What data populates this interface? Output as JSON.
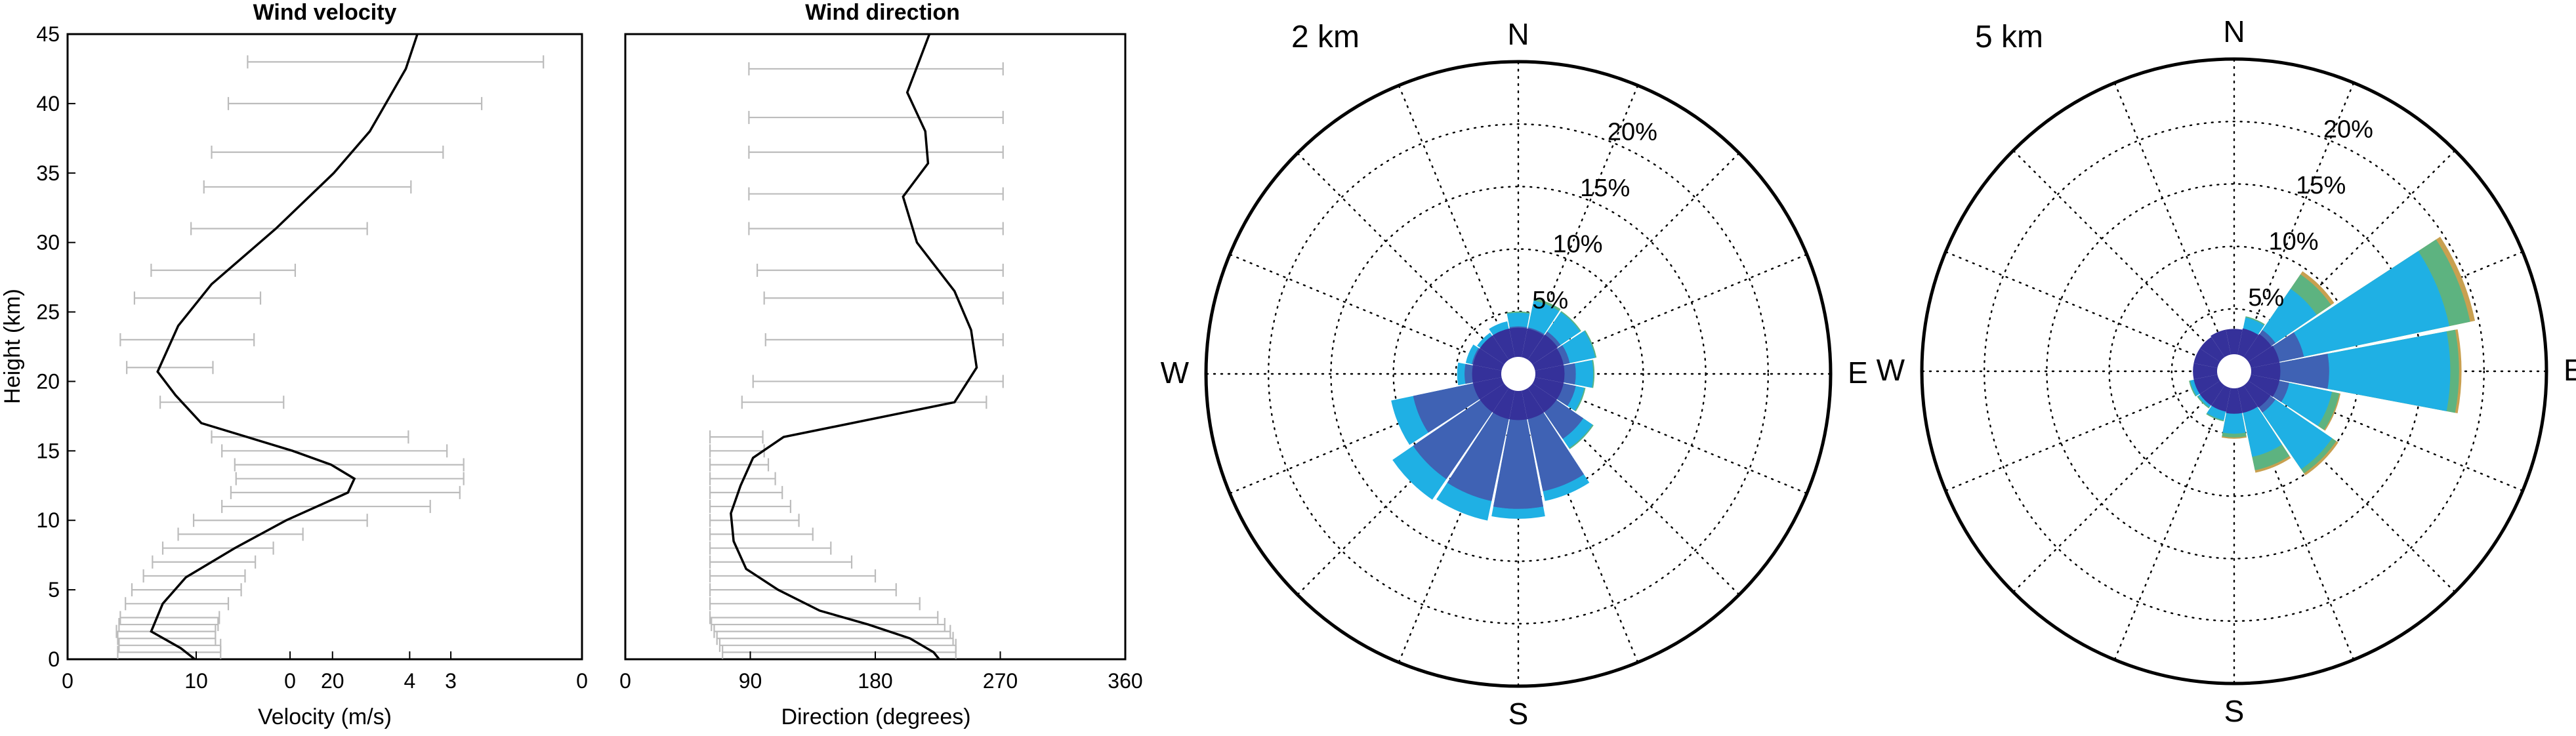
{
  "chart_data": [
    {
      "type": "line",
      "title": "Wind velocity",
      "xlabel": "Velocity (m/s)",
      "ylabel": "Height (km)",
      "xlim": [
        0,
        40
      ],
      "ylim": [
        0,
        45
      ],
      "x_tick_labels": [
        {
          "label": "0",
          "x": 0
        },
        {
          "label": "10",
          "x": 10
        },
        {
          "label": "0",
          "x": 17.3
        },
        {
          "label": "20",
          "x": 20.6
        },
        {
          "label": "4",
          "x": 26.6
        },
        {
          "label": "3",
          "x": 29.8
        },
        {
          "label": "0",
          "x": 40
        }
      ],
      "y_ticks": [
        0,
        5,
        10,
        15,
        20,
        25,
        30,
        35,
        40,
        45
      ],
      "grid": false,
      "series": [
        {
          "x": [
            9.9,
            8.8,
            6.5,
            7.4,
            9.2,
            13.0,
            17.0,
            21.8,
            22.3,
            20.5,
            17.5,
            10.4,
            8.4,
            7.0,
            8.6,
            11.2,
            16.2,
            20.7,
            23.5,
            26.3,
            27.2
          ],
          "y": [
            0,
            0.8,
            2.0,
            4.0,
            5.9,
            8.0,
            10.0,
            12.0,
            13.0,
            14.0,
            15.0,
            17.0,
            19.0,
            20.7,
            24.0,
            27.0,
            31.0,
            35.0,
            38.0,
            42.5,
            45.0
          ]
        }
      ],
      "error_bars": [
        {
          "y": 43,
          "lo": 14.0,
          "hi": 37.0
        },
        {
          "y": 40,
          "lo": 12.5,
          "hi": 32.2
        },
        {
          "y": 36.5,
          "lo": 11.2,
          "hi": 29.2
        },
        {
          "y": 34,
          "lo": 10.6,
          "hi": 26.7
        },
        {
          "y": 31,
          "lo": 9.6,
          "hi": 23.3
        },
        {
          "y": 28,
          "lo": 6.5,
          "hi": 17.7
        },
        {
          "y": 26,
          "lo": 5.2,
          "hi": 15.0
        },
        {
          "y": 23,
          "lo": 4.1,
          "hi": 14.5
        },
        {
          "y": 21,
          "lo": 4.6,
          "hi": 11.3
        },
        {
          "y": 18.5,
          "lo": 7.2,
          "hi": 16.8
        },
        {
          "y": 16,
          "lo": 11.2,
          "hi": 26.5
        },
        {
          "y": 15,
          "lo": 12.0,
          "hi": 29.5
        },
        {
          "y": 14,
          "lo": 13.0,
          "hi": 30.8
        },
        {
          "y": 13,
          "lo": 13.1,
          "hi": 30.8
        },
        {
          "y": 12,
          "lo": 12.7,
          "hi": 30.5
        },
        {
          "y": 11,
          "lo": 12.0,
          "hi": 28.2
        },
        {
          "y": 10,
          "lo": 9.8,
          "hi": 23.3
        },
        {
          "y": 9,
          "lo": 8.6,
          "hi": 18.3
        },
        {
          "y": 8,
          "lo": 7.4,
          "hi": 16.0
        },
        {
          "y": 7,
          "lo": 6.6,
          "hi": 14.6
        },
        {
          "y": 6,
          "lo": 5.9,
          "hi": 13.8
        },
        {
          "y": 5,
          "lo": 5.0,
          "hi": 13.5
        },
        {
          "y": 4,
          "lo": 4.5,
          "hi": 12.5
        },
        {
          "y": 3,
          "lo": 4.1,
          "hi": 11.8
        },
        {
          "y": 2.5,
          "lo": 4.0,
          "hi": 11.7
        },
        {
          "y": 2,
          "lo": 3.8,
          "hi": 11.5
        },
        {
          "y": 1.5,
          "lo": 3.9,
          "hi": 11.5
        },
        {
          "y": 1,
          "lo": 4.0,
          "hi": 11.9
        },
        {
          "y": 0.5,
          "lo": 3.9,
          "hi": 11.9
        }
      ]
    },
    {
      "type": "line",
      "title": "Wind direction",
      "xlabel": "Direction (degrees)",
      "ylabel": "",
      "xlim": [
        0,
        360
      ],
      "ylim": [
        0,
        45
      ],
      "x_ticks": [
        0,
        90,
        180,
        270,
        360
      ],
      "grid": false,
      "series": [
        {
          "x": [
            226,
            222,
            205,
            175,
            140,
            110,
            87,
            78,
            76,
            83,
            92,
            114,
            237,
            253,
            249,
            237,
            210,
            200,
            218,
            216,
            203,
            219
          ],
          "y": [
            0,
            0.5,
            1.5,
            2.5,
            3.5,
            5.0,
            6.5,
            8.5,
            10.5,
            12.5,
            14.5,
            16.0,
            18.5,
            21.0,
            23.7,
            26.5,
            30.0,
            33.3,
            35.7,
            38.0,
            40.8,
            45.0
          ]
        }
      ],
      "error_bars": [
        {
          "y": 42.5,
          "lo": 89,
          "hi": 272
        },
        {
          "y": 39,
          "lo": 89,
          "hi": 272
        },
        {
          "y": 36.5,
          "lo": 89,
          "hi": 272
        },
        {
          "y": 33.5,
          "lo": 89,
          "hi": 272
        },
        {
          "y": 31,
          "lo": 89,
          "hi": 272
        },
        {
          "y": 28,
          "lo": 95,
          "hi": 272
        },
        {
          "y": 26,
          "lo": 100,
          "hi": 272
        },
        {
          "y": 23,
          "lo": 101,
          "hi": 272
        },
        {
          "y": 20,
          "lo": 92,
          "hi": 272
        },
        {
          "y": 18.5,
          "lo": 84,
          "hi": 260
        },
        {
          "y": 16,
          "lo": 61,
          "hi": 99
        },
        {
          "y": 15,
          "lo": 61,
          "hi": 100
        },
        {
          "y": 14,
          "lo": 61,
          "hi": 103
        },
        {
          "y": 13,
          "lo": 61,
          "hi": 108
        },
        {
          "y": 12,
          "lo": 61,
          "hi": 113
        },
        {
          "y": 11,
          "lo": 61,
          "hi": 119
        },
        {
          "y": 10,
          "lo": 61,
          "hi": 125
        },
        {
          "y": 9,
          "lo": 61,
          "hi": 135
        },
        {
          "y": 8,
          "lo": 61,
          "hi": 148
        },
        {
          "y": 7,
          "lo": 61,
          "hi": 163
        },
        {
          "y": 6,
          "lo": 61,
          "hi": 180
        },
        {
          "y": 5,
          "lo": 61,
          "hi": 195
        },
        {
          "y": 4,
          "lo": 61,
          "hi": 212
        },
        {
          "y": 3,
          "lo": 61,
          "hi": 225
        },
        {
          "y": 2.5,
          "lo": 62,
          "hi": 230
        },
        {
          "y": 2,
          "lo": 64,
          "hi": 234
        },
        {
          "y": 1.5,
          "lo": 66,
          "hi": 236
        },
        {
          "y": 1,
          "lo": 68,
          "hi": 238
        },
        {
          "y": 0.5,
          "lo": 70,
          "hi": 238
        }
      ]
    },
    {
      "type": "wind-rose",
      "title": "2 km",
      "directions": [
        "N",
        "E",
        "S",
        "W"
      ],
      "ring_labels": [
        "5%",
        "10%",
        "15%",
        "20%"
      ],
      "ring_values": [
        5,
        10,
        15,
        20
      ],
      "max_value": 25,
      "sector_count": 16,
      "layer_colors": [
        "#35319a",
        "#3f62b4",
        "#1fb0e4",
        "#5db380",
        "#c8a050"
      ],
      "sectors": [
        [
          2.5,
          3.8,
          4.9,
          5.0,
          5.0
        ],
        [
          2.5,
          3.8,
          6.0,
          6.2,
          6.2
        ],
        [
          2.6,
          4.1,
          6.0,
          6.1,
          6.1
        ],
        [
          2.5,
          4.2,
          6.3,
          6.4,
          6.4
        ],
        [
          2.5,
          4.6,
          6.0,
          6.1,
          6.1
        ],
        [
          2.5,
          4.7,
          5.4,
          5.5,
          5.5
        ],
        [
          2.5,
          6.3,
          7.2,
          7.3,
          7.3
        ],
        [
          2.5,
          9.6,
          10.4,
          10.4,
          10.4
        ],
        [
          2.5,
          10.8,
          11.6,
          11.6,
          11.6
        ],
        [
          2.5,
          10.4,
          12.0,
          12.0,
          12.0
        ],
        [
          2.5,
          10.2,
          12.2,
          12.2,
          12.2
        ],
        [
          2.5,
          8.6,
          10.4,
          10.4,
          10.4
        ],
        [
          2.5,
          4.3,
          4.9,
          4.9,
          4.9
        ],
        [
          2.5,
          3.8,
          4.3,
          4.3,
          4.3
        ],
        [
          2.5,
          3.5,
          4.0,
          4.0,
          4.0
        ],
        [
          2.5,
          3.5,
          4.3,
          4.3,
          4.3
        ]
      ]
    },
    {
      "type": "wind-rose",
      "title": "5 km",
      "directions": [
        "N",
        "E",
        "S",
        "W"
      ],
      "ring_labels": [
        "5%",
        "10%",
        "15%",
        "20%"
      ],
      "ring_values": [
        5,
        10,
        15,
        20
      ],
      "max_value": 25,
      "sector_count": 16,
      "layer_colors": [
        "#35319a",
        "#3f62b4",
        "#1fb0e4",
        "#5db380",
        "#c8a050"
      ],
      "sectors": [
        [
          2.2,
          2.8,
          3.2,
          3.3,
          3.3
        ],
        [
          2.3,
          3.4,
          4.4,
          4.5,
          4.5
        ],
        [
          2.4,
          4.0,
          8.0,
          9.4,
          9.7
        ],
        [
          2.5,
          5.7,
          17.6,
          19.3,
          19.7
        ],
        [
          2.5,
          7.6,
          17.3,
          18.0,
          18.2
        ],
        [
          2.5,
          4.5,
          8.0,
          8.6,
          8.7
        ],
        [
          2.3,
          4.0,
          9.5,
          9.9,
          10.1
        ],
        [
          2.2,
          3.1,
          7.0,
          8.1,
          8.3
        ],
        [
          2.2,
          3.1,
          5.0,
          5.3,
          5.4
        ],
        [
          2.1,
          2.8,
          4.0,
          4.1,
          4.1
        ],
        [
          2.1,
          3.0,
          3.5,
          3.6,
          3.6
        ],
        [
          2.1,
          2.7,
          3.6,
          3.7,
          3.7
        ],
        [
          2.1,
          2.6,
          3.0,
          3.0,
          3.0
        ],
        [
          2.1,
          2.6,
          2.9,
          2.9,
          2.9
        ],
        [
          2.1,
          2.7,
          3.0,
          3.0,
          3.0
        ],
        [
          2.2,
          2.7,
          3.3,
          3.3,
          3.3
        ]
      ]
    }
  ]
}
